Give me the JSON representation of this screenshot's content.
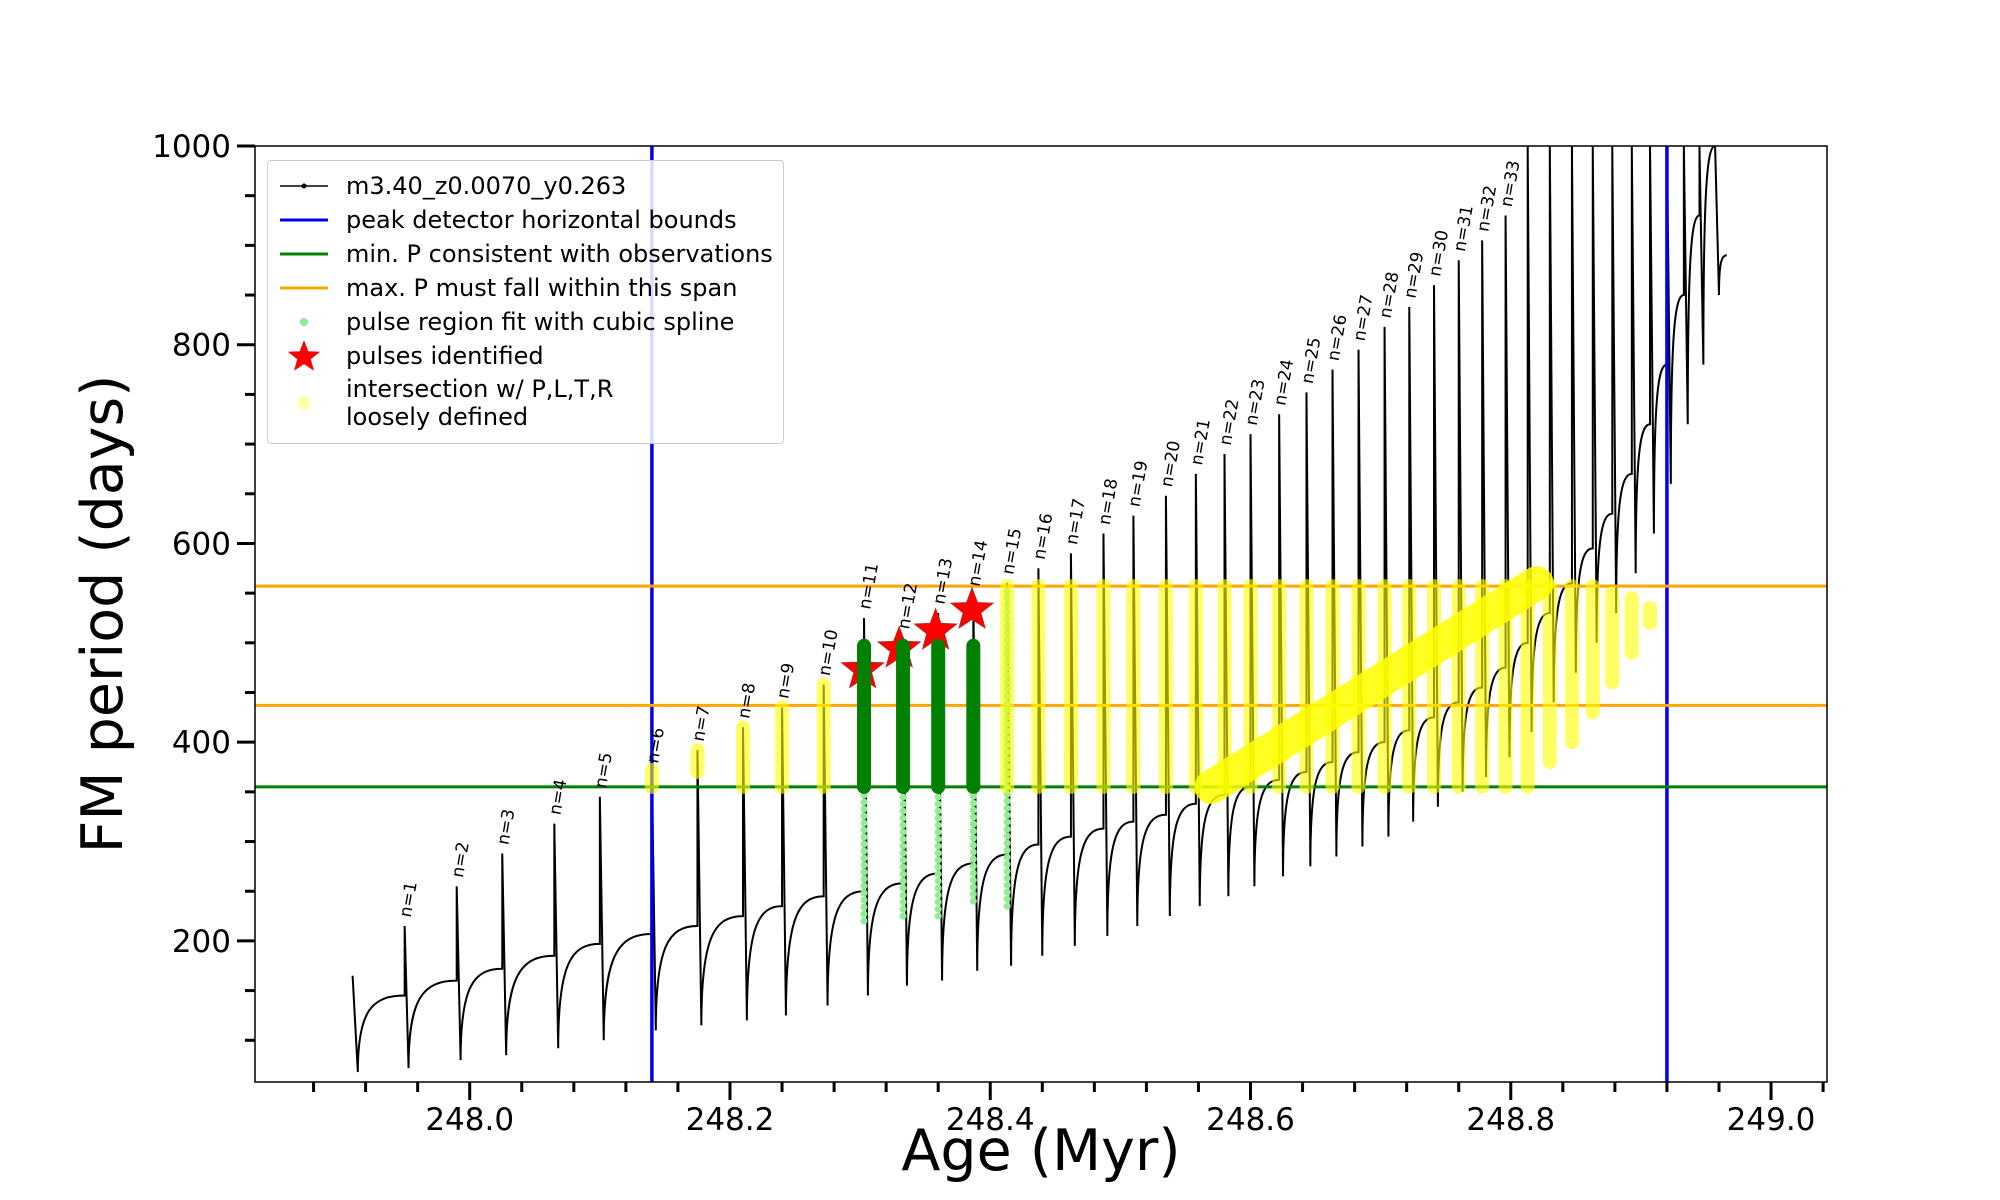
{
  "chart_data": {
    "type": "line",
    "xlabel": "Age (Myr)",
    "ylabel": "FM period (days)",
    "xlim": [
      247.835,
      249.043
    ],
    "ylim": [
      58,
      1000
    ],
    "xticks": [
      {
        "value": 248,
        "label": "248.0"
      },
      {
        "value": 248.2,
        "label": "248.2"
      },
      {
        "value": 248.4,
        "label": "248.4"
      },
      {
        "value": 248.6,
        "label": "248.6"
      },
      {
        "value": 248.8,
        "label": "248.8"
      },
      {
        "value": 249,
        "label": "249.0"
      }
    ],
    "xminorticks": [
      247.88,
      247.92,
      247.96,
      248.04,
      248.08,
      248.12,
      248.16,
      248.24,
      248.28,
      248.32,
      248.36,
      248.44,
      248.48,
      248.52,
      248.56,
      248.64,
      248.68,
      248.72,
      248.76,
      248.84,
      248.88,
      248.92,
      248.96,
      249.04
    ],
    "yticks": [
      200,
      400,
      600,
      800,
      1000
    ],
    "yminorticks": [
      100,
      150,
      250,
      300,
      350,
      450,
      500,
      550,
      650,
      700,
      750,
      850,
      900,
      950
    ],
    "legend": "upper left",
    "series": [
      {
        "name": "m3.40_z0.0070_y0.263",
        "kind": "line",
        "color": "#000000",
        "x": [
          247.91,
          247.914,
          247.95,
          247.95,
          247.953,
          247.99,
          247.99,
          247.993,
          248.025,
          248.025,
          248.028,
          248.065,
          248.065,
          248.068,
          248.1,
          248.1,
          248.103,
          248.14,
          248.14,
          248.143,
          248.175,
          248.175,
          248.178,
          248.21,
          248.21,
          248.213,
          248.24,
          248.24,
          248.243,
          248.272,
          248.272,
          248.275,
          248.303,
          248.303,
          248.306,
          248.333,
          248.333,
          248.336,
          248.36,
          248.36,
          248.363,
          248.387,
          248.387,
          248.39,
          248.413,
          248.413,
          248.416,
          248.437,
          248.437,
          248.44,
          248.462,
          248.462,
          248.465,
          248.487,
          248.487,
          248.49,
          248.51,
          248.51,
          248.513,
          248.535,
          248.535,
          248.538,
          248.558,
          248.558,
          248.561,
          248.58,
          248.58,
          248.583,
          248.6,
          248.6,
          248.603,
          248.622,
          248.622,
          248.625,
          248.643,
          248.643,
          248.646,
          248.663,
          248.663,
          248.666,
          248.683,
          248.683,
          248.686,
          248.703,
          248.703,
          248.706,
          248.722,
          248.722,
          248.725,
          248.741,
          248.741,
          248.744,
          248.76,
          248.76,
          248.763,
          248.778,
          248.778,
          248.781,
          248.796,
          248.796,
          248.799,
          248.813,
          248.813,
          248.816,
          248.83,
          248.83,
          248.833,
          248.847,
          248.847,
          248.85,
          248.863,
          248.863,
          248.866,
          248.878,
          248.878,
          248.881,
          248.893,
          248.893,
          248.896,
          248.907,
          248.907,
          248.91,
          248.92,
          248.92,
          248.923,
          248.933,
          248.933,
          248.936,
          248.945,
          248.945,
          248.948,
          248.957,
          248.957,
          248.96,
          248.966
        ],
        "values": [
          165,
          68,
          145,
          215,
          72,
          160,
          255,
          80,
          172,
          288,
          85,
          185,
          318,
          92,
          197,
          345,
          100,
          207,
          370,
          110,
          215,
          392,
          115,
          225,
          415,
          120,
          235,
          435,
          125,
          245,
          458,
          135,
          250,
          525,
          145,
          258,
          505,
          155,
          268,
          530,
          160,
          278,
          548,
          170,
          287,
          560,
          175,
          297,
          575,
          185,
          305,
          590,
          195,
          313,
          610,
          205,
          320,
          628,
          215,
          327,
          648,
          225,
          338,
          670,
          235,
          347,
          690,
          245,
          355,
          710,
          255,
          362,
          730,
          265,
          370,
          752,
          275,
          380,
          775,
          285,
          390,
          795,
          295,
          400,
          818,
          305,
          412,
          838,
          320,
          425,
          860,
          335,
          440,
          885,
          350,
          455,
          905,
          365,
          475,
          930,
          385,
          500,
          1000,
          410,
          530,
          1000,
          440,
          560,
          1000,
          470,
          595,
          1000,
          500,
          630,
          1000,
          530,
          670,
          1000,
          570,
          720,
          1000,
          610,
          780,
          1000,
          660,
          850,
          1000,
          720,
          930,
          1000,
          780,
          1000,
          1000,
          850,
          890
        ]
      },
      {
        "name": "peak detector horizontal bounds",
        "kind": "vline",
        "color": "#0000ee",
        "values": [
          248.14,
          248.92
        ]
      },
      {
        "name": "min. P consistent with observations",
        "kind": "hline",
        "color": "#008000",
        "values": [
          355
        ]
      },
      {
        "name": "max. P must fall within this span",
        "kind": "hline",
        "color": "#ffa500",
        "values": [
          437,
          557
        ]
      },
      {
        "name": "pulse region fit with cubic spline",
        "kind": "dots",
        "color": "#90ee90",
        "x": [
          248.303,
          248.333,
          248.36,
          248.387,
          248.413
        ],
        "low": [
          220,
          225,
          225,
          240,
          235
        ],
        "high": [
          500,
          500,
          500,
          500,
          555
        ]
      },
      {
        "name": "pulses identified",
        "kind": "star",
        "color": "#ff0000",
        "x": [
          248.302,
          248.33,
          248.358,
          248.386
        ],
        "values": [
          473,
          494,
          512,
          533
        ]
      },
      {
        "name": "intersection w/ P,L,T,R\nloosely defined",
        "kind": "range",
        "color": "#ffff00",
        "x": [
          248.14,
          248.175,
          248.21,
          248.24,
          248.272,
          248.413,
          248.437,
          248.462,
          248.487,
          248.51,
          248.535,
          248.558,
          248.58,
          248.6,
          248.622,
          248.643,
          248.663,
          248.683,
          248.703,
          248.722,
          248.741,
          248.76,
          248.778,
          248.796,
          248.813,
          248.83,
          248.847,
          248.863,
          248.878,
          248.893,
          248.907
        ],
        "low": [
          355,
          370,
          355,
          355,
          355,
          355,
          355,
          355,
          355,
          355,
          355,
          355,
          355,
          355,
          355,
          355,
          355,
          355,
          355,
          355,
          355,
          355,
          355,
          355,
          355,
          380,
          400,
          430,
          460,
          490,
          520
        ],
        "high": [
          372,
          392,
          415,
          435,
          458,
          557,
          557,
          557,
          557,
          557,
          557,
          557,
          557,
          557,
          557,
          557,
          557,
          557,
          557,
          557,
          557,
          557,
          557,
          557,
          557,
          557,
          557,
          557,
          550,
          545,
          535
        ]
      },
      {
        "kind": "bar-range",
        "color": "#008000",
        "x": [
          248.303,
          248.333,
          248.36,
          248.387
        ],
        "low": [
          355,
          355,
          355,
          355
        ],
        "high": [
          497,
          497,
          497,
          497
        ]
      },
      {
        "kind": "band",
        "color": "#ffff00",
        "x": [
          248.57,
          248.82
        ],
        "values": [
          355,
          560
        ]
      }
    ],
    "pulse_labels": [
      "n=1",
      "n=2",
      "n=3",
      "n=4",
      "n=5",
      "n=6",
      "n=7",
      "n=8",
      "n=9",
      "n=10",
      "n=11",
      "n=12",
      "n=13",
      "n=14",
      "n=15",
      "n=16",
      "n=17",
      "n=18",
      "n=19",
      "n=20",
      "n=21",
      "n=22",
      "n=23",
      "n=24",
      "n=25",
      "n=26",
      "n=27",
      "n=28",
      "n=29",
      "n=30",
      "n=31",
      "n=32",
      "n=33"
    ]
  }
}
